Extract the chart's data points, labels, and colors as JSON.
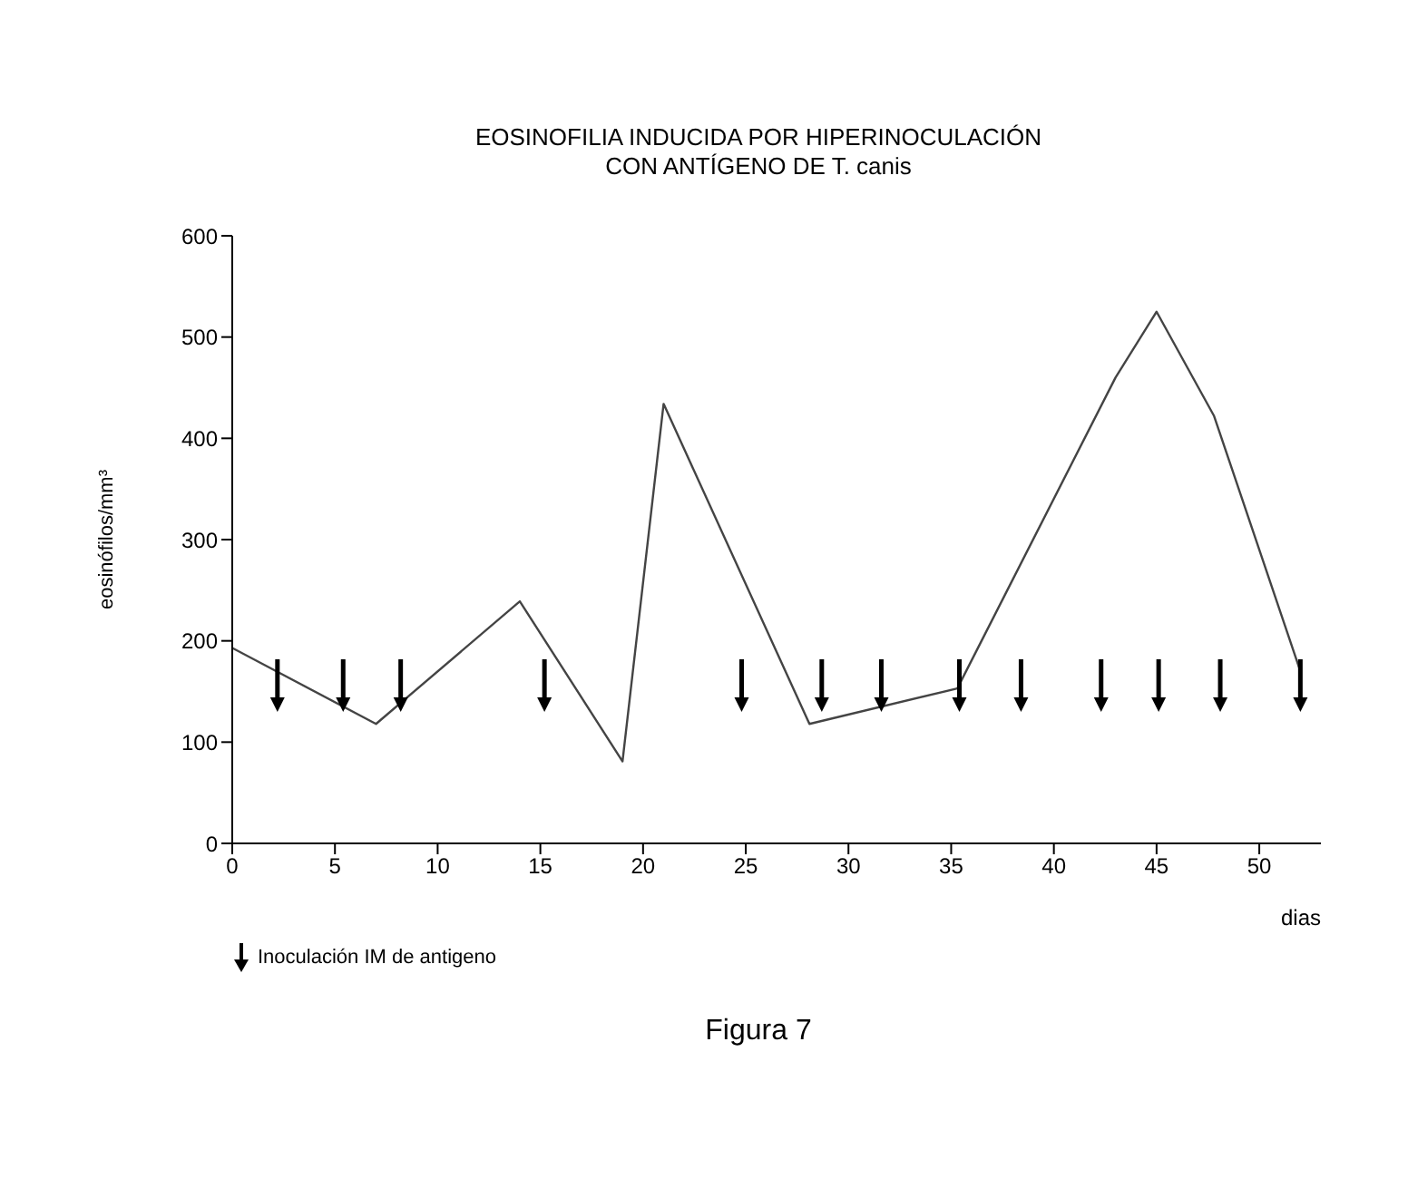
{
  "chart_data": {
    "type": "line",
    "title": "EOSINOFILIA INDUCIDA POR HIPERINOCULACIÓN\nCON ANTÍGENO DE T. canis",
    "xlabel": "dias",
    "ylabel": "eosinófilos/mm³",
    "xlim": [
      0,
      53
    ],
    "xticks": [
      0,
      5,
      10,
      15,
      20,
      25,
      30,
      35,
      40,
      45,
      50
    ],
    "ylim": [
      0,
      600
    ],
    "yticks": [
      0,
      100,
      200,
      300,
      400,
      500,
      600
    ],
    "grid": false,
    "legend": "bottom left",
    "annotations": [
      "Figura 7"
    ],
    "series": [
      {
        "color": "#444444",
        "x": [
          0,
          7,
          14,
          19,
          21,
          28.1,
          35.3,
          43,
          45,
          47.8,
          52
        ],
        "values": [
          193,
          118,
          239,
          81,
          434,
          118,
          153,
          460,
          525,
          422,
          170
        ]
      },
      {
        "type": "scatter",
        "name": "Inoculación IM de antigeno",
        "color": "#000000",
        "x": [
          2.2,
          5.4,
          8.2,
          15.2,
          24.8,
          28.7,
          31.6,
          35.4,
          38.4,
          42.3,
          45.1,
          48.1,
          52
        ],
        "values": [
          137,
          137,
          137,
          137,
          137,
          137,
          137,
          137,
          137,
          137,
          137,
          137,
          137
        ]
      }
    ]
  }
}
